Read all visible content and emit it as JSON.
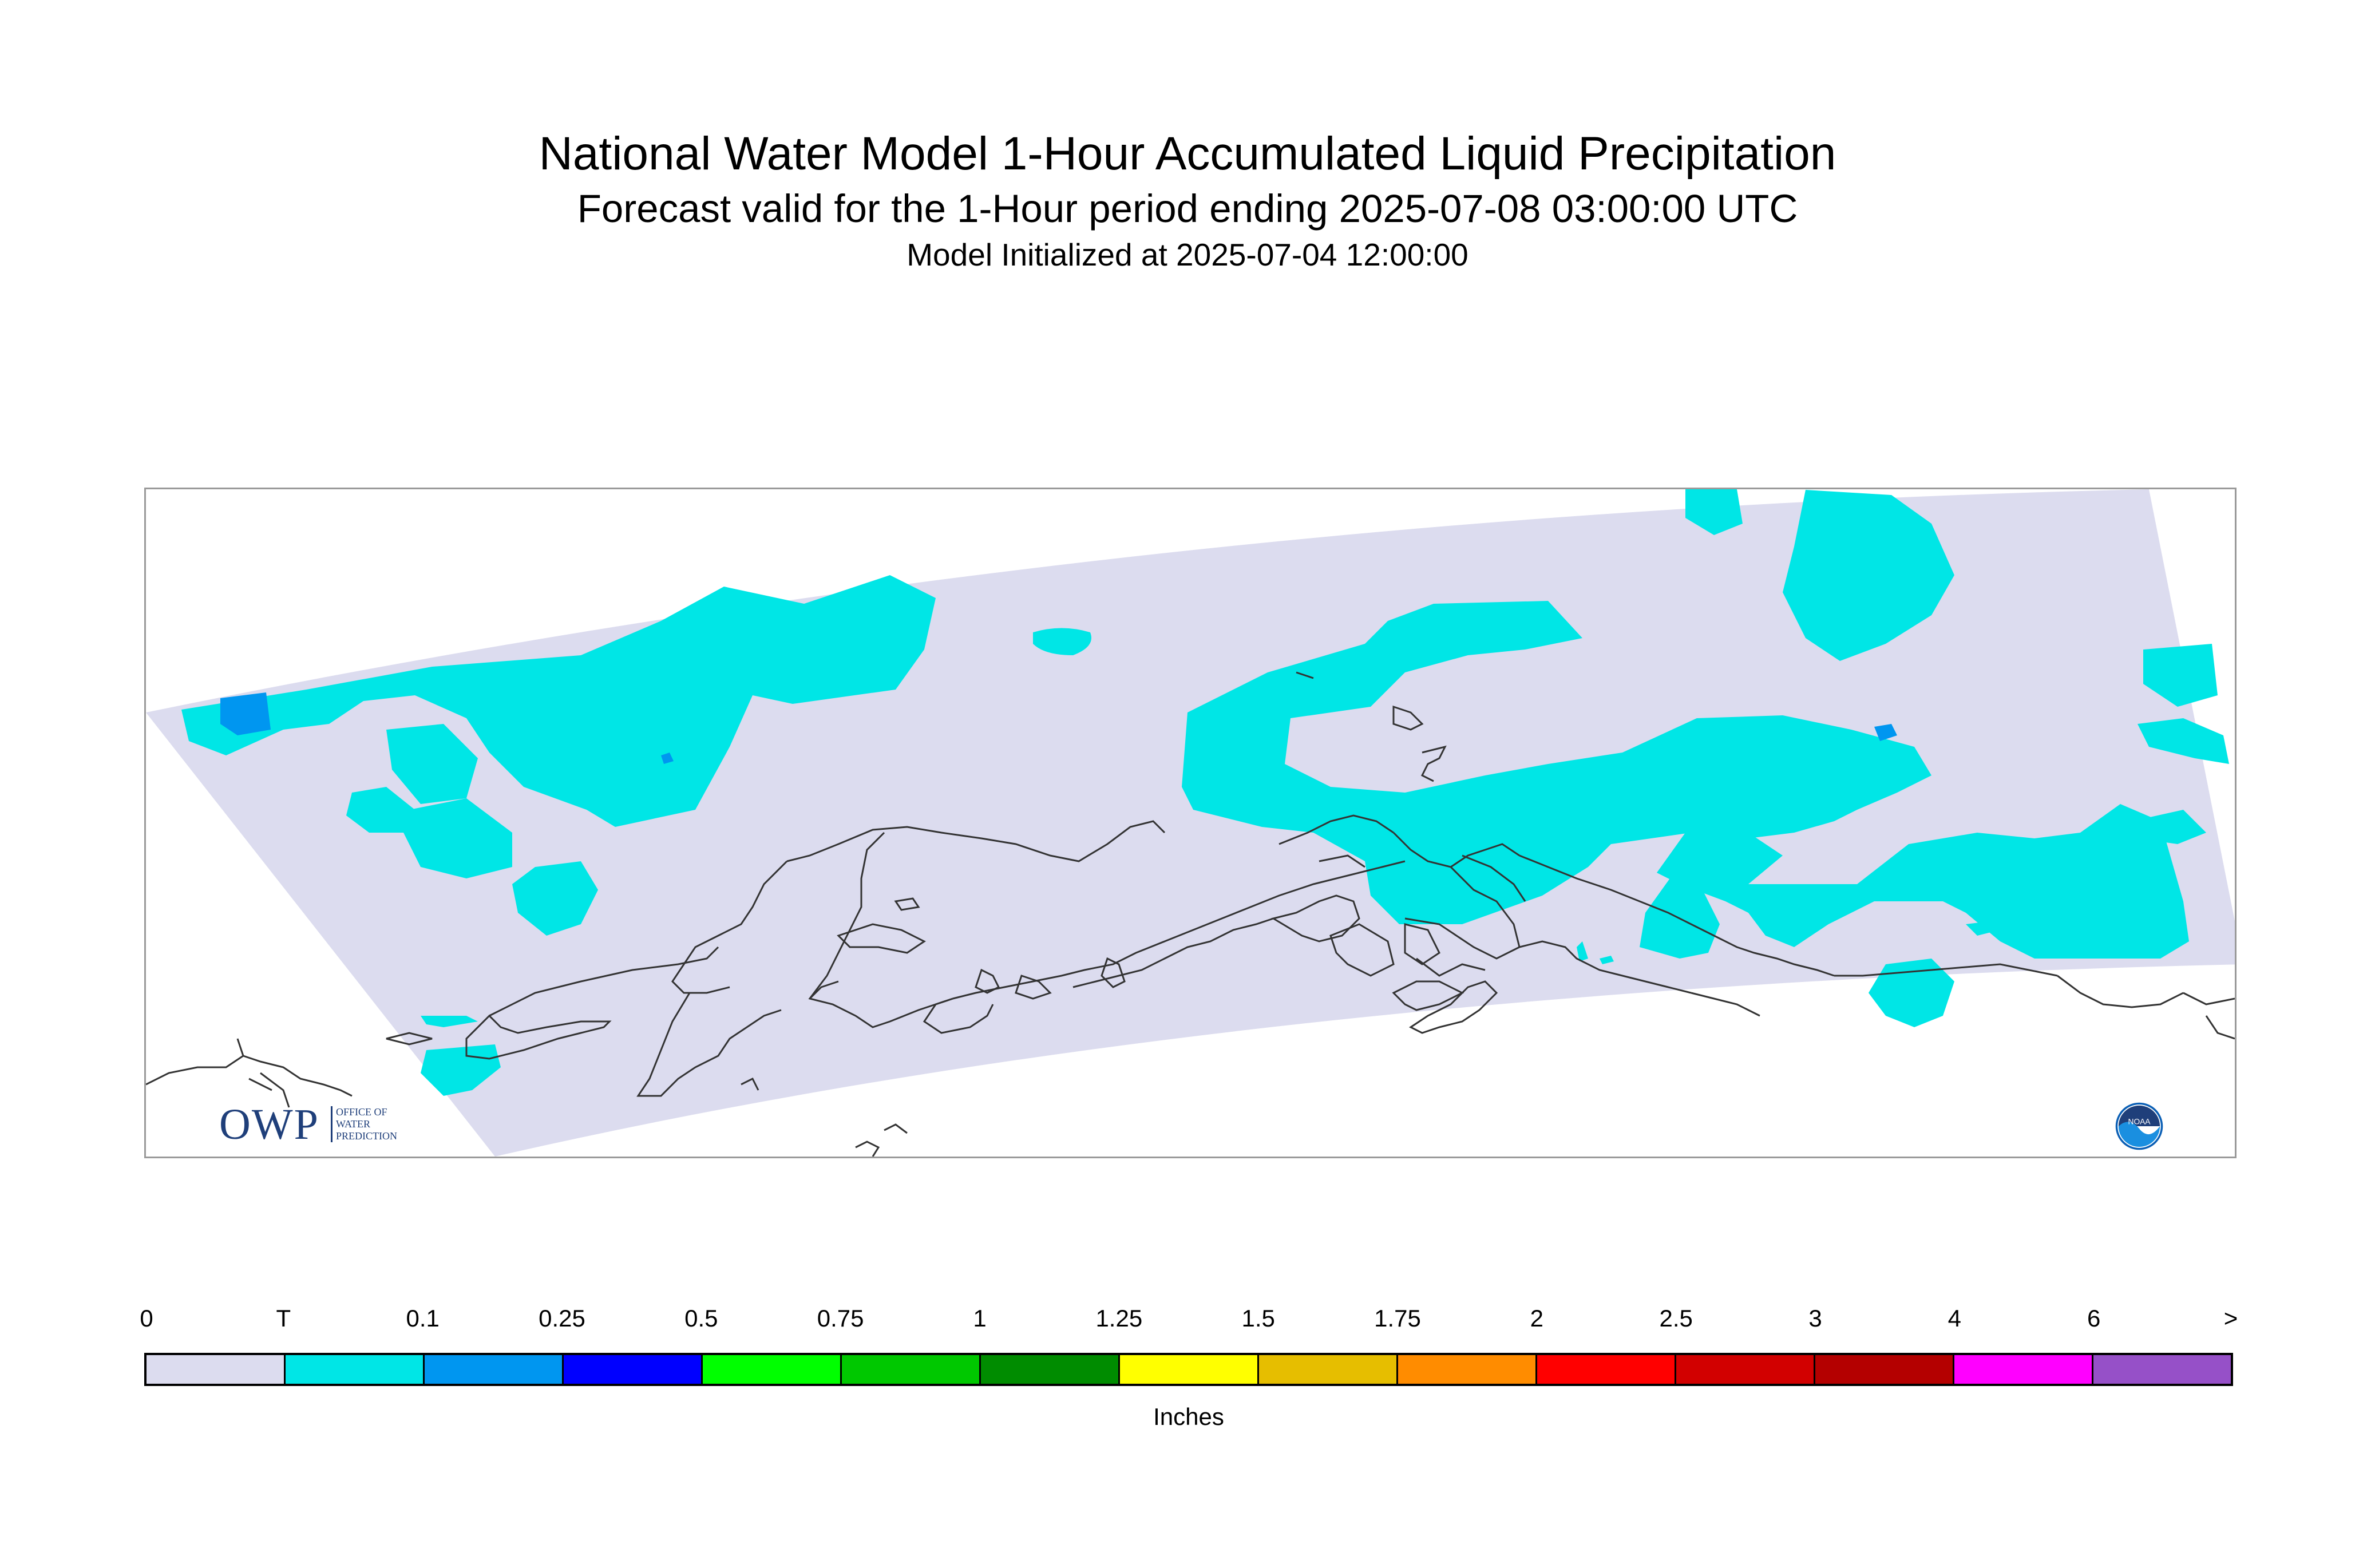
{
  "title": {
    "main": "National Water Model 1-Hour Accumulated Liquid Precipitation",
    "sub": "Forecast valid for the 1-Hour period ending 2025-07-08 03:00:00 UTC",
    "init": "Model Initialized at 2025-07-04 12:00:00"
  },
  "map": {
    "region": "Alaska",
    "domain_fill": "#dcdcef",
    "coastline_color": "#333333",
    "frame_color": "#9a9a9a",
    "visible_precip_classes": [
      "T",
      "0.1"
    ]
  },
  "logos": {
    "owp_letters": "OWP",
    "owp_text": [
      "OFFICE OF",
      "WATER",
      "PREDICTION"
    ],
    "noaa_text": "NOAA"
  },
  "legend": {
    "units": "Inches",
    "tick_labels": [
      "0",
      "T",
      "0.1",
      "0.25",
      "0.5",
      "0.75",
      "1",
      "1.25",
      "1.5",
      "1.75",
      "2",
      "2.5",
      "3",
      "4",
      "6",
      ">"
    ],
    "colors": [
      "#dcdcef",
      "#00e6e6",
      "#0096f0",
      "#0000ff",
      "#00ff00",
      "#00c800",
      "#008c00",
      "#ffff00",
      "#e6be00",
      "#ff8c00",
      "#ff0000",
      "#d20000",
      "#b40000",
      "#ff00ff",
      "#9650c8"
    ]
  }
}
